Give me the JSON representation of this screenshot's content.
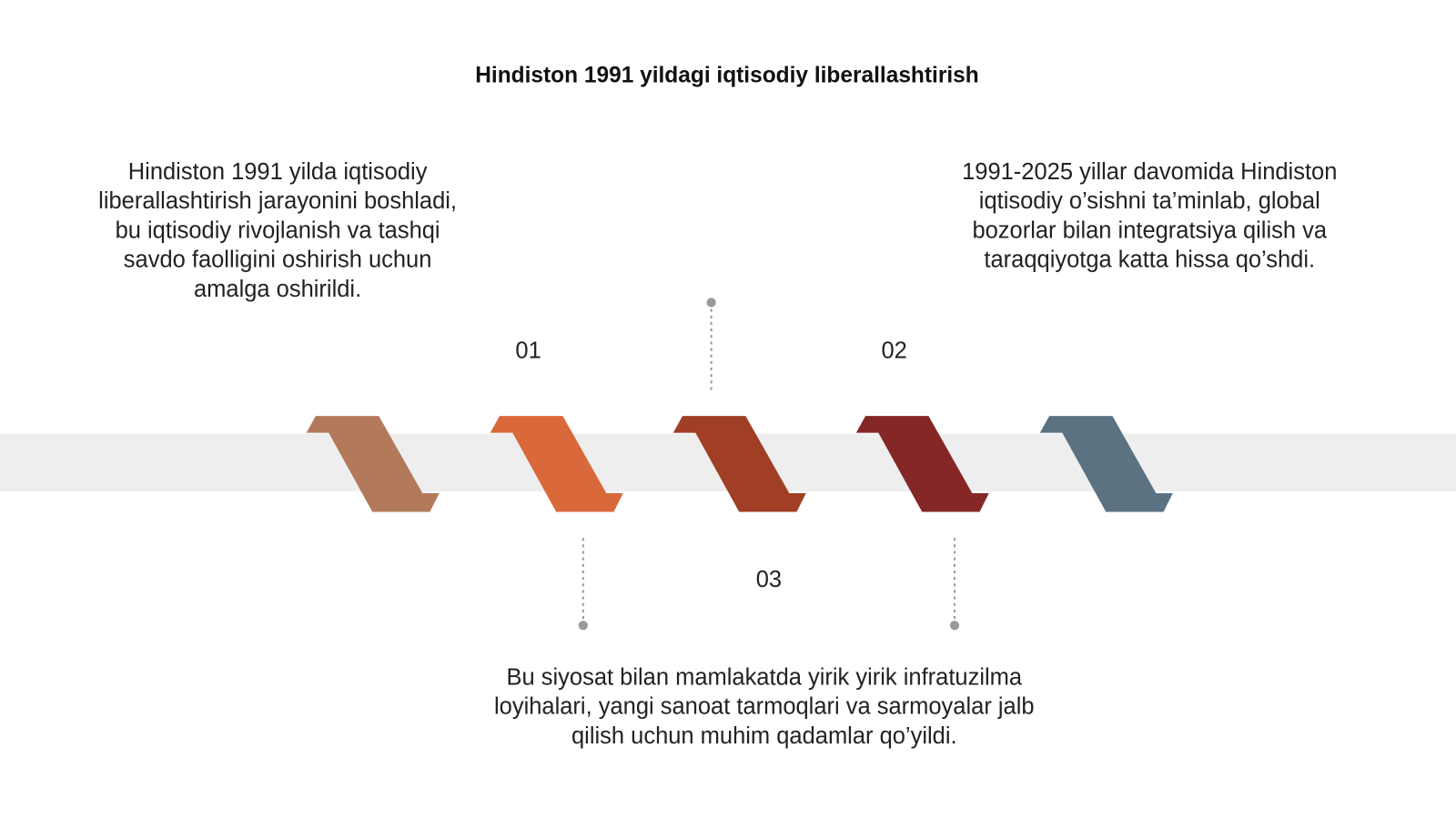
{
  "title": "Hindiston 1991 yildagi iqtisodiy liberallashtirish",
  "steps": [
    {
      "number": "01",
      "lines": [
        "Hindiston 1991 yilda iqtisodiy",
        "liberallashtirish jarayonini boshladi,",
        "bu iqtisodiy rivojlanish va tashqi",
        "savdo faolligini oshirish uchun",
        "amalga oshirildi."
      ]
    },
    {
      "number": "02",
      "lines": [
        "1991-2025 yillar davomida Hindiston",
        "iqtisodiy o’sishni ta’minlab, global",
        "bozorlar bilan integratsiya qilish va",
        "taraqqiyotga katta hissa qo’shdi."
      ]
    },
    {
      "number": "03",
      "lines": [
        "Bu siyosat bilan mamlakatda yirik yirik infratuzilma",
        "loyihalari, yangi sanoat tarmoqlari va sarmoyalar jalb",
        "qilish uchun muhim qadamlar qo’yildi."
      ]
    }
  ]
}
